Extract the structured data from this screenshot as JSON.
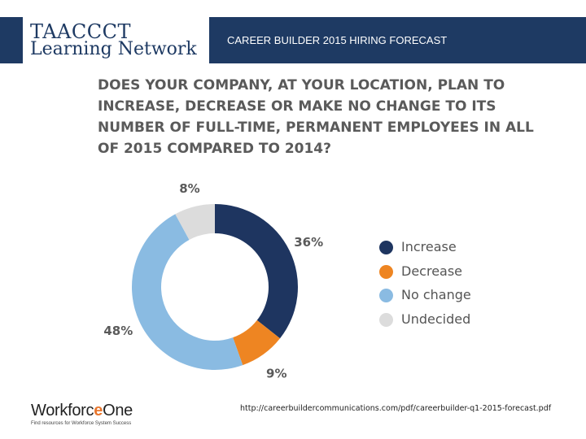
{
  "header": {
    "logo_line1": "TAACCCT",
    "logo_line2": "Learning Network",
    "title": "CAREER BUILDER 2015 HIRING FORECAST"
  },
  "question": "DOES YOUR COMPANY, AT YOUR LOCATION, PLAN TO INCREASE, DECREASE OR MAKE NO CHANGE TO ITS NUMBER OF FULL-TIME, PERMANENT EMPLOYEES IN ALL OF 2015 COMPARED TO 2014?",
  "chart_data": {
    "type": "pie",
    "title": "DOES YOUR COMPANY, AT YOUR LOCATION, PLAN TO INCREASE, DECREASE OR MAKE NO CHANGE TO ITS NUMBER OF FULL-TIME, PERMANENT EMPLOYEES IN ALL OF 2015 COMPARED TO 2014?",
    "style": "donut",
    "categories": [
      "Increase",
      "Decrease",
      "No change",
      "Undecided"
    ],
    "values": [
      36,
      9,
      48,
      8
    ],
    "value_labels": [
      "36%",
      "9%",
      "48%",
      "8%"
    ],
    "colors": [
      "#1e3560",
      "#ee8522",
      "#8abbe2",
      "#dcdcdc"
    ],
    "legend_position": "right"
  },
  "footer": {
    "source_url": "http://careerbuildercommunications.com/pdf/careerbuilder-q1-2015-forecast.pdf",
    "workforce_name_pre": "Workforc",
    "workforce_name_o": "e",
    "workforce_name_post": "One",
    "workforce_tagline": "Find resources for Workforce System Success"
  }
}
